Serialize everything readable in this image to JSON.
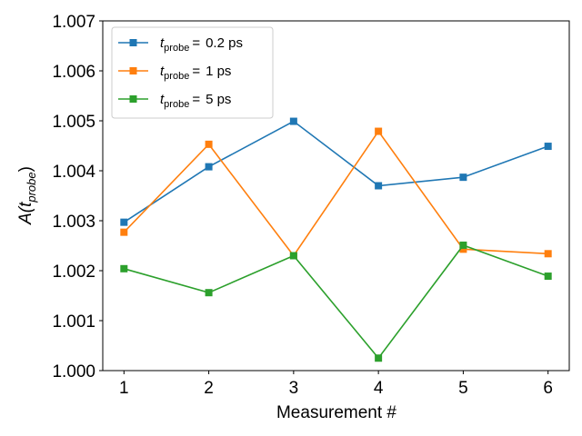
{
  "chart_data": {
    "type": "line",
    "x": [
      1,
      2,
      3,
      4,
      5,
      6
    ],
    "xlabel": "Measurement #",
    "ylabel_main": "A(t",
    "ylabel_sub": "probe",
    "ylabel_close": ")",
    "xlim": [
      0.75,
      6.25
    ],
    "ylim": [
      1.0,
      1.007
    ],
    "xticks": [
      1,
      2,
      3,
      4,
      5,
      6
    ],
    "yticks": [
      1.0,
      1.001,
      1.002,
      1.003,
      1.004,
      1.005,
      1.006,
      1.007
    ],
    "ytick_labels": [
      "1.000",
      "1.001",
      "1.002",
      "1.003",
      "1.004",
      "1.005",
      "1.006",
      "1.007"
    ],
    "grid": false,
    "legend_position": "top-left",
    "series": [
      {
        "name": "0.2 ps",
        "legend_prefix": "t",
        "legend_sub": "probe",
        "legend_eq": "=",
        "legend_value": "0.2 ps",
        "color": "#1f77b4",
        "marker": "square",
        "values": [
          1.00297,
          1.00408,
          1.00499,
          1.0037,
          1.00387,
          1.00449
        ]
      },
      {
        "name": "1 ps",
        "legend_prefix": "t",
        "legend_sub": "probe",
        "legend_eq": "=",
        "legend_value": "1 ps",
        "color": "#ff7f0e",
        "marker": "square",
        "values": [
          1.00277,
          1.00453,
          1.0023,
          1.00479,
          1.00243,
          1.00234
        ]
      },
      {
        "name": "5 ps",
        "legend_prefix": "t",
        "legend_sub": "probe",
        "legend_eq": "=",
        "legend_value": "5 ps",
        "color": "#2ca02c",
        "marker": "square",
        "values": [
          1.00204,
          1.00156,
          1.0023,
          1.00025,
          1.00251,
          1.00189
        ]
      }
    ]
  }
}
